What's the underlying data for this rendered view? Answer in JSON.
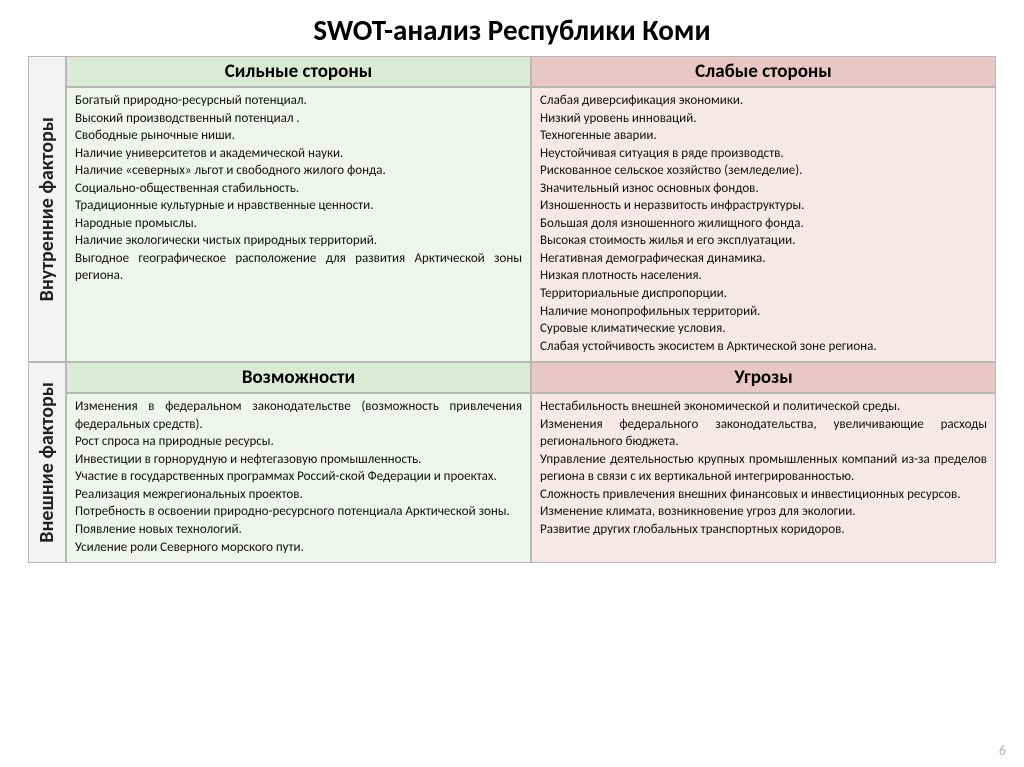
{
  "title": "SWOT-анализ Республики Коми",
  "page_number": "6",
  "colors": {
    "header_green": "#dbead5",
    "header_red": "#e9c7c6",
    "content_green": "#eff5ec",
    "content_red": "#f6e8e7",
    "side_label_bg": "#f3f3f3",
    "border": "#b8b8b8"
  },
  "rows": {
    "internal_label": "Внутренние факторы",
    "external_label": "Внешние факторы"
  },
  "quadrants": {
    "strengths": {
      "header": "Сильные стороны",
      "items": [
        "Богатый природно-ресурсный потенциал.",
        "Высокий производственный потенциал .",
        "Свободные рыночные ниши.",
        "Наличие университетов и академической науки.",
        "Наличие «северных» льгот и свободного жилого фонда.",
        "Социально-общественная стабильность.",
        "Традиционные культурные и нравственные ценности.",
        "Народные промыслы.",
        "Наличие экологически чистых природных территорий.",
        "Выгодное географическое расположение для развития Арктической зоны региона."
      ]
    },
    "weaknesses": {
      "header": "Слабые стороны",
      "items": [
        "Слабая диверсификация экономики.",
        "Низкий уровень инноваций.",
        "Техногенные аварии.",
        "Неустойчивая ситуация в ряде производств.",
        "Рискованное сельское хозяйство (земледелие).",
        "Значительный износ основных фондов.",
        "Изношенность и неразвитость инфраструктуры.",
        "Большая доля изношенного жилищного фонда.",
        "Высокая стоимость жилья и его эксплуатации.",
        "Негативная демографическая динамика.",
        "Низкая плотность населения.",
        "Территориальные диспропорции.",
        "Наличие монопрофильных территорий.",
        "Суровые климатические условия.",
        "Слабая устойчивость экосистем в Арктической зоне региона."
      ]
    },
    "opportunities": {
      "header": "Возможности",
      "items": [
        "Изменения в федеральном законодательстве (возможность привлечения федеральных средств).",
        "Рост спроса на природные ресурсы.",
        "Инвестиции в горнорудную и нефтегазовую промышленность.",
        "Участие в государственных программах Россий-ской Федерации и проектах.",
        "Реализация межрегиональных проектов.",
        "Потребность в освоении природно-ресурсного потенциала Арктической зоны.",
        "Появление новых технологий.",
        "Усиление роли Северного морского пути."
      ]
    },
    "threats": {
      "header": "Угрозы",
      "items": [
        "Нестабильность внешней экономической и политической среды.",
        "Изменения федерального законодательства, увеличивающие расходы регионального бюджета.",
        "Управление деятельностью крупных промышленных компаний из-за пределов региона в связи с их вертикальной интегрированностью.",
        "Сложность привлечения внешних финансовых и инвестиционных ресурсов.",
        "Изменение климата, возникновение угроз для экологии.",
        "Развитие других глобальных транспортных коридоров."
      ]
    }
  }
}
